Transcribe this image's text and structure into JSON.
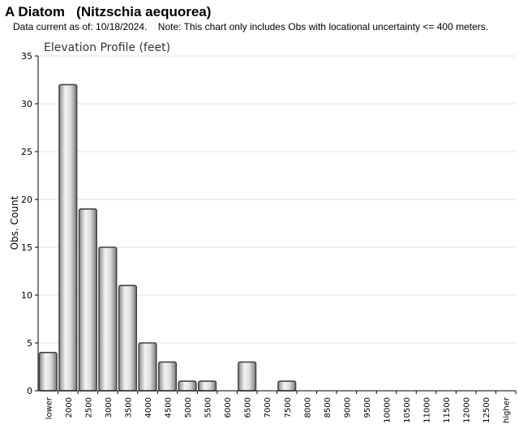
{
  "header": {
    "title": "A Diatom   (Nitzschia aequorea)",
    "subtitle": "Data current as of: 10/18/2024.    Note: This chart only includes Obs with locational uncertainty <= 400 meters."
  },
  "chart_data": {
    "type": "bar",
    "title": "Elevation Profile (feet)",
    "xlabel": "",
    "ylabel": "Obs. Count",
    "ylim": [
      0,
      35
    ],
    "yticks": [
      0,
      5,
      10,
      15,
      20,
      25,
      30,
      35
    ],
    "grid": true,
    "categories": [
      "lower",
      "2000",
      "2500",
      "3000",
      "3500",
      "4000",
      "4500",
      "5000",
      "5500",
      "6000",
      "6500",
      "7000",
      "7500",
      "8000",
      "8500",
      "9000",
      "9500",
      "10000",
      "10500",
      "11000",
      "11500",
      "12000",
      "12500",
      "higher"
    ],
    "values": [
      4,
      32,
      19,
      15,
      11,
      5,
      3,
      1,
      1,
      0,
      3,
      0,
      1,
      0,
      0,
      0,
      0,
      0,
      0,
      0,
      0,
      0,
      0,
      0
    ],
    "colors": {
      "bar_light": "#f4f4f4",
      "bar_dark": "#7a7a7a",
      "bar_edge": "#444444",
      "grid": "#e2e2e2",
      "axis": "#000000"
    }
  }
}
